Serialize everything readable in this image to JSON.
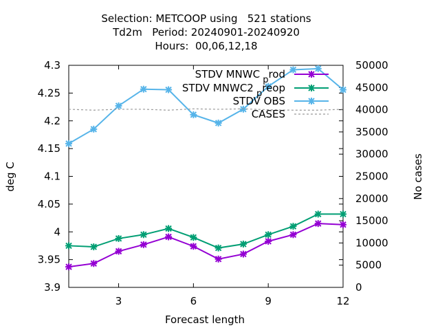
{
  "title": {
    "line1": "Selection: METCOOP using   521 stations",
    "line2": "Td2m   Period: 20240901-20240920",
    "line3": "Hours:  00,06,12,18"
  },
  "colors": {
    "mnwc_prod": "#9400d3",
    "mnwc2_preop": "#009e73",
    "obs": "#56b4e9",
    "cases": "#999999"
  },
  "chart_data": {
    "type": "line",
    "xlabel": "Forecast length",
    "ylabel": "deg C",
    "y2label": "No cases",
    "xlim": [
      1,
      12
    ],
    "ylim": [
      3.9,
      4.3
    ],
    "y2lim": [
      0,
      50000
    ],
    "xticks": [
      "3",
      "6",
      "9",
      "12"
    ],
    "yticks": [
      "3.9",
      "3.95",
      "4",
      "4.05",
      "4.1",
      "4.15",
      "4.2",
      "4.25",
      "4.3"
    ],
    "y2ticks": [
      "0",
      "5000",
      "10000",
      "15000",
      "20000",
      "25000",
      "30000",
      "35000",
      "40000",
      "45000",
      "50000"
    ],
    "x": [
      1,
      2,
      3,
      4,
      5,
      6,
      7,
      8,
      9,
      10,
      11,
      12
    ],
    "legend_position": "top-right",
    "series": [
      {
        "name": "STDV MNWC_prod",
        "legend_main": "STDV MNWC",
        "legend_sub": "p",
        "legend_tail": "rod",
        "color": "#9400d3",
        "axis": "y",
        "values": [
          3.937,
          3.943,
          3.965,
          3.977,
          3.991,
          3.974,
          3.951,
          3.96,
          3.983,
          3.995,
          4.015,
          4.013
        ]
      },
      {
        "name": "STDV MNWC2_preop",
        "legend_main": "STDV MNWC2",
        "legend_sub": "p",
        "legend_tail": "reop",
        "color": "#009e73",
        "axis": "y",
        "values": [
          3.975,
          3.973,
          3.988,
          3.995,
          4.006,
          3.99,
          3.971,
          3.978,
          3.995,
          4.01,
          4.032,
          4.032
        ]
      },
      {
        "name": "STDV OBS",
        "legend_main": "STDV OBS",
        "legend_sub": "",
        "legend_tail": "",
        "color": "#56b4e9",
        "axis": "y",
        "values": [
          4.159,
          4.185,
          4.227,
          4.257,
          4.256,
          4.211,
          4.196,
          4.221,
          4.262,
          4.292,
          4.294,
          4.256
        ]
      },
      {
        "name": "CASES",
        "legend_main": "CASES",
        "legend_sub": "",
        "legend_tail": "",
        "color": "#999999",
        "axis": "y2",
        "dashed": true,
        "values": [
          40100,
          39900,
          40100,
          40100,
          39900,
          40200,
          40100,
          40200,
          40000,
          39900,
          39900,
          40100
        ]
      }
    ]
  }
}
